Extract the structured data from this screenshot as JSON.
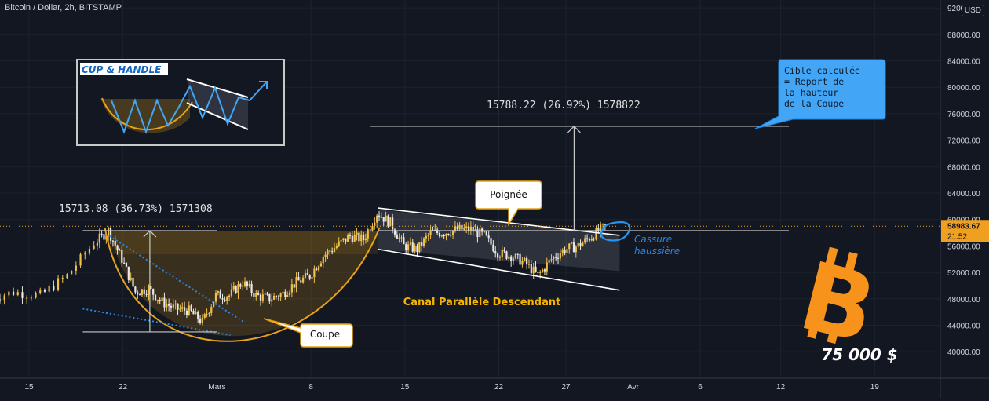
{
  "header": {
    "symbol_line": "Bitcoin / Dollar, 2h, BITSTAMP",
    "currency": "USD"
  },
  "price_tag": {
    "value": "58983.67",
    "countdown": "21:52",
    "color": "#f0a020"
  },
  "colors": {
    "background": "#131722",
    "candle_up": "#f0c048",
    "candle_down": "#e8e8e8",
    "cup_curve": "#e8a317",
    "annotation_blue": "#42a5f5",
    "dotted_line": "#2e86de",
    "bitcoin_orange": "#f7931a"
  },
  "annotations": {
    "cup_label": "Coupe",
    "handle_label": "Poignée",
    "channel_label": "Canal Parallèle Descendant",
    "breakout_line1": "Cassure",
    "breakout_line2": "haussière",
    "target_line1": "Cible calculée",
    "target_line2": "= Report de",
    "target_line3": "la hauteur",
    "target_line4": "de la Coupe",
    "cup_measure": "15713.08 (36.73%) 1571308",
    "target_measure": "15788.22 (26.92%) 1578822",
    "inset_title": "CUP & HANDLE",
    "big_price": "75 000 $"
  },
  "chart_data": {
    "type": "candlestick",
    "title": "Bitcoin / Dollar, 2h, BITSTAMP",
    "x_tick_labels": [
      "15",
      "22",
      "Mars",
      "8",
      "15",
      "22",
      "27",
      "Avr",
      "6",
      "12",
      "19"
    ],
    "y_tick_labels": [
      "40000.00",
      "44000.00",
      "48000.00",
      "52000.00",
      "56000.00",
      "60000.00",
      "64000.00",
      "68000.00",
      "72000.00",
      "76000.00",
      "80000.00",
      "84000.00",
      "88000.00",
      "92000.00"
    ],
    "ylim": [
      38000,
      93500
    ],
    "last_price": 58983.67,
    "approx_close_path": [
      {
        "date": "2021-02-12",
        "close": 48000
      },
      {
        "date": "2021-02-14",
        "close": 49000
      },
      {
        "date": "2021-02-16",
        "close": 48500
      },
      {
        "date": "2021-02-18",
        "close": 51500
      },
      {
        "date": "2021-02-20",
        "close": 56500
      },
      {
        "date": "2021-02-21",
        "close": 58300
      },
      {
        "date": "2021-02-22",
        "close": 54000
      },
      {
        "date": "2021-02-23",
        "close": 49000
      },
      {
        "date": "2021-02-24",
        "close": 49500
      },
      {
        "date": "2021-02-25",
        "close": 47500
      },
      {
        "date": "2021-02-26",
        "close": 46500
      },
      {
        "date": "2021-02-27",
        "close": 46200
      },
      {
        "date": "2021-02-28",
        "close": 44500
      },
      {
        "date": "2021-03-01",
        "close": 48500
      },
      {
        "date": "2021-03-02",
        "close": 48500
      },
      {
        "date": "2021-03-03",
        "close": 50500
      },
      {
        "date": "2021-03-04",
        "close": 48500
      },
      {
        "date": "2021-03-05",
        "close": 48000
      },
      {
        "date": "2021-03-06",
        "close": 48800
      },
      {
        "date": "2021-03-07",
        "close": 50500
      },
      {
        "date": "2021-03-08",
        "close": 51500
      },
      {
        "date": "2021-03-09",
        "close": 54500
      },
      {
        "date": "2021-03-10",
        "close": 56000
      },
      {
        "date": "2021-03-11",
        "close": 57500
      },
      {
        "date": "2021-03-12",
        "close": 57000
      },
      {
        "date": "2021-03-13",
        "close": 61000
      },
      {
        "date": "2021-03-14",
        "close": 59500
      },
      {
        "date": "2021-03-15",
        "close": 56000
      },
      {
        "date": "2021-03-16",
        "close": 55500
      },
      {
        "date": "2021-03-17",
        "close": 58000
      },
      {
        "date": "2021-03-18",
        "close": 58000
      },
      {
        "date": "2021-03-19",
        "close": 58500
      },
      {
        "date": "2021-03-20",
        "close": 58500
      },
      {
        "date": "2021-03-21",
        "close": 57500
      },
      {
        "date": "2021-03-22",
        "close": 55000
      },
      {
        "date": "2021-03-23",
        "close": 54500
      },
      {
        "date": "2021-03-24",
        "close": 53500
      },
      {
        "date": "2021-03-25",
        "close": 51500
      },
      {
        "date": "2021-03-26",
        "close": 54000
      },
      {
        "date": "2021-03-27",
        "close": 55500
      },
      {
        "date": "2021-03-28",
        "close": 56000
      },
      {
        "date": "2021-03-29",
        "close": 57500
      },
      {
        "date": "2021-03-30",
        "close": 58900
      }
    ],
    "levels": {
      "cup_rim": 58300,
      "cup_bottom": 43000,
      "target": 74100
    }
  }
}
